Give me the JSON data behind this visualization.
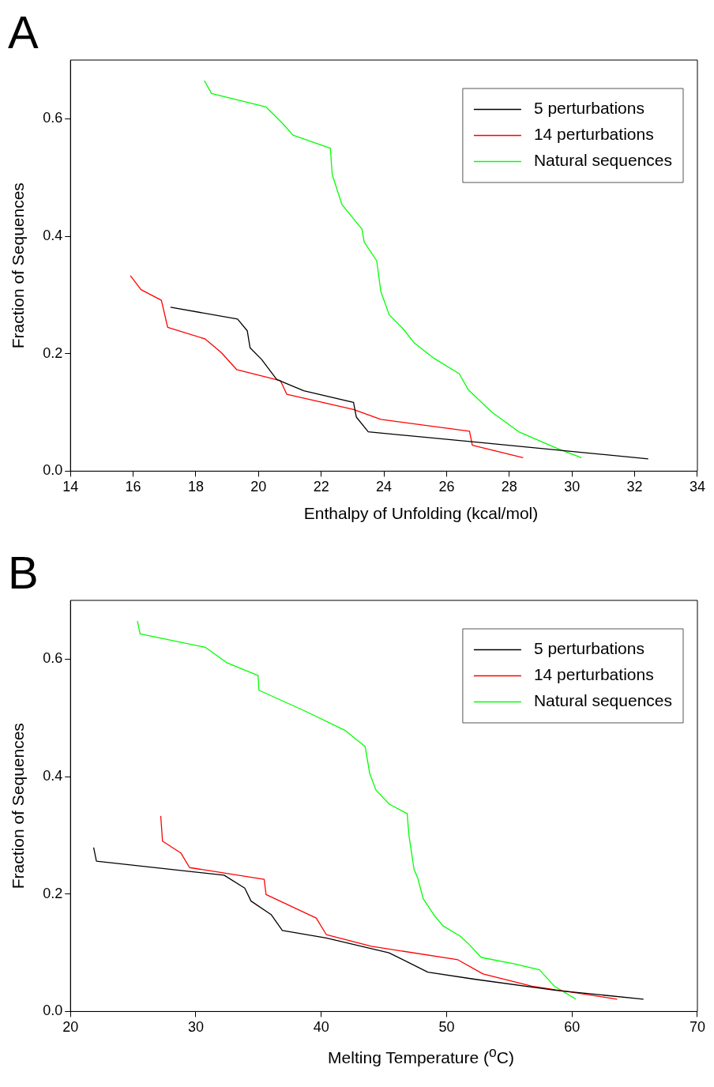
{
  "chart_data": [
    {
      "type": "line",
      "title": "A",
      "xlabel": "Enthalpy of Unfolding (kcal/mol)",
      "ylabel": "Fraction of Sequences",
      "xlim": [
        14,
        34
      ],
      "xticks": [
        14,
        16,
        18,
        20,
        22,
        24,
        26,
        28,
        30,
        32,
        34
      ],
      "ylim": [
        0,
        0.7
      ],
      "yticks": [
        {
          "value": 0,
          "label": "0.0"
        },
        {
          "value": 0.2,
          "label": "0.2"
        },
        {
          "value": 0.4,
          "label": "0.4"
        },
        {
          "value": 0.6,
          "label": "0.6"
        }
      ],
      "legend": "top right",
      "grid": false,
      "marker": "none",
      "series": [
        {
          "name": "5 perturbations",
          "color": "#000000",
          "x": [
            17.19,
            19.33,
            19.64,
            19.73,
            20.1,
            20.58,
            21.44,
            23.03,
            23.12,
            23.5,
            27.0,
            32.43
          ],
          "values": [
            0.279,
            0.259,
            0.239,
            0.21,
            0.19,
            0.156,
            0.137,
            0.117,
            0.092,
            0.067,
            0.049,
            0.021
          ]
        },
        {
          "name": "14 perturbations",
          "color": "#ff0000",
          "x": [
            15.91,
            16.25,
            16.9,
            17.1,
            18.3,
            18.81,
            19.3,
            20.7,
            20.9,
            23.03,
            23.9,
            26.73,
            26.82,
            28.44
          ],
          "values": [
            0.333,
            0.309,
            0.291,
            0.245,
            0.225,
            0.202,
            0.173,
            0.154,
            0.131,
            0.105,
            0.088,
            0.068,
            0.044,
            0.023
          ]
        },
        {
          "name": "Natural sequences",
          "color": "#00ff00",
          "x": [
            18.27,
            18.5,
            20.24,
            20.75,
            21.1,
            22.29,
            22.35,
            22.66,
            23.3,
            23.37,
            23.77,
            23.9,
            24.17,
            24.6,
            24.97,
            25.6,
            26.4,
            26.7,
            27.45,
            28.3,
            29.6,
            30.3
          ],
          "values": [
            0.665,
            0.643,
            0.62,
            0.593,
            0.572,
            0.55,
            0.505,
            0.454,
            0.412,
            0.39,
            0.358,
            0.306,
            0.266,
            0.243,
            0.218,
            0.192,
            0.166,
            0.138,
            0.1,
            0.067,
            0.037,
            0.023
          ]
        }
      ]
    },
    {
      "type": "line",
      "title": "B",
      "xlabel": "Melting Temperature ($^{o}$C)",
      "ylabel": "Fraction of Sequences",
      "xlim": [
        20,
        70
      ],
      "xticks": [
        20,
        30,
        40,
        50,
        60,
        70
      ],
      "ylim": [
        0,
        0.7
      ],
      "yticks": [
        {
          "value": 0,
          "label": "0.0"
        },
        {
          "value": 0.2,
          "label": "0.2"
        },
        {
          "value": 0.4,
          "label": "0.4"
        },
        {
          "value": 0.6,
          "label": "0.6"
        }
      ],
      "legend": "top right",
      "grid": false,
      "marker": "none",
      "series": [
        {
          "name": "5 perturbations",
          "color": "#000000",
          "x": [
            21.85,
            22.07,
            32.25,
            33.9,
            34.4,
            36.0,
            36.9,
            40.4,
            45.4,
            48.5,
            52.2,
            58.7,
            65.7
          ],
          "values": [
            0.279,
            0.256,
            0.232,
            0.21,
            0.188,
            0.165,
            0.138,
            0.125,
            0.1,
            0.067,
            0.055,
            0.036,
            0.021
          ]
        },
        {
          "name": "14 perturbations",
          "color": "#ff0000",
          "x": [
            27.2,
            27.34,
            28.8,
            29.5,
            35.45,
            35.6,
            39.6,
            40.4,
            44.0,
            50.9,
            52.9,
            56.8,
            63.6
          ],
          "values": [
            0.333,
            0.29,
            0.27,
            0.245,
            0.225,
            0.199,
            0.159,
            0.131,
            0.111,
            0.088,
            0.064,
            0.043,
            0.021
          ]
        },
        {
          "name": "Natural sequences",
          "color": "#00ff00",
          "x": [
            25.34,
            25.55,
            30.76,
            32.46,
            34.96,
            35.03,
            38.66,
            41.87,
            43.5,
            43.87,
            44.36,
            45.43,
            46.85,
            47.0,
            47.4,
            47.7,
            48.13,
            49.0,
            49.7,
            51.1,
            51.8,
            52.76,
            55.4,
            57.4,
            58.6,
            60.3
          ],
          "values": [
            0.665,
            0.643,
            0.62,
            0.594,
            0.572,
            0.547,
            0.512,
            0.479,
            0.451,
            0.405,
            0.377,
            0.353,
            0.337,
            0.299,
            0.242,
            0.227,
            0.192,
            0.164,
            0.146,
            0.128,
            0.114,
            0.092,
            0.081,
            0.071,
            0.043,
            0.021
          ]
        }
      ]
    }
  ]
}
